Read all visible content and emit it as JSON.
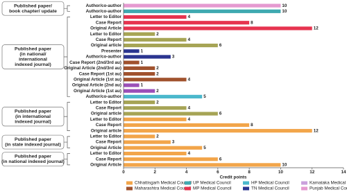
{
  "chart_data": {
    "type": "hbar-grouped",
    "xlabel": "Credit points",
    "xlim": [
      0,
      14
    ],
    "xticks": [
      0,
      2,
      4,
      6,
      8,
      10,
      12,
      14
    ],
    "groups": [
      {
        "label_lines": [
          "Published paper/",
          "book chapter/ update"
        ],
        "rows": [
          {
            "label": "Author/co-author",
            "value": 10,
            "color": "#e59ad0"
          },
          {
            "label": "Author/co-author",
            "value": 10,
            "color": "#3fa9b0"
          }
        ]
      },
      {
        "label_lines": [
          "Published paper",
          "(in national/",
          "international",
          "indexed journal)"
        ],
        "rows": [
          {
            "label": "Letter to Editor",
            "value": 4,
            "color": "#e6344f"
          },
          {
            "label": "Case Report",
            "value": 8,
            "color": "#e6344f"
          },
          {
            "label": "Original Article",
            "value": 12,
            "color": "#e6344f"
          },
          {
            "label": "Letter to Editor",
            "value": 2,
            "color": "#a6a455"
          },
          {
            "label": "Case Report",
            "value": 4,
            "color": "#a6a455"
          },
          {
            "label": "Original article",
            "value": 6,
            "color": "#a6a455"
          },
          {
            "label": "Presenter",
            "value": 1,
            "color": "#2b3590"
          },
          {
            "label": "Author/co-author",
            "value": 3,
            "color": "#2b3590"
          },
          {
            "label": "Case Report (2nd/3rd au)",
            "value": 1,
            "color": "#a0522d"
          },
          {
            "label": "Original Article (2nd/3rd au)",
            "value": 2,
            "color": "#a0522d"
          },
          {
            "label": "Case Report (1st au)",
            "value": 2,
            "color": "#a0522d"
          },
          {
            "label": "Original Article (1st au)",
            "value": 4,
            "color": "#a0522d"
          },
          {
            "label": "Original Article (2nd au)",
            "value": 1,
            "color": "#9b4fb8"
          },
          {
            "label": "Original Article (1st au)",
            "value": 2,
            "color": "#9b4fb8"
          },
          {
            "label": "Author/co-author",
            "value": 5,
            "color": "#4cb8cc"
          }
        ]
      },
      {
        "label_lines": [
          "Published paper",
          "(in international",
          "indexed journal)"
        ],
        "rows": [
          {
            "label": "Letter to Editor",
            "value": 2,
            "color": "#a6a455"
          },
          {
            "label": "Case Report",
            "value": 4,
            "color": "#a6a455"
          },
          {
            "label": "Original article",
            "value": 6,
            "color": "#a6a455"
          },
          {
            "label": "Letter to Editor",
            "value": 4,
            "color": "#f2a54a"
          },
          {
            "label": "Case Report",
            "value": 8,
            "color": "#f2a54a"
          },
          {
            "label": "Original article",
            "value": 12,
            "color": "#f2a54a"
          }
        ]
      },
      {
        "label_lines": [
          "Published paper",
          "(in state indexed journal)"
        ],
        "rows": [
          {
            "label": "Letter to Editor",
            "value": 2,
            "color": "#f2a54a"
          },
          {
            "label": "Case Report",
            "value": 3,
            "color": "#f2a54a"
          },
          {
            "label": "Original Article",
            "value": 5,
            "color": "#f2a54a"
          }
        ]
      },
      {
        "label_lines": [
          "Published paper",
          "(in national indexed journal)"
        ],
        "rows": [
          {
            "label": "Letter to Editor",
            "value": 4,
            "color": "#f2a54a"
          },
          {
            "label": "Case Report",
            "value": 6,
            "color": "#f2a54a"
          },
          {
            "label": "Original Article",
            "value": 10,
            "color": "#f2a54a"
          }
        ]
      }
    ],
    "legend": [
      {
        "name": "Chhattisgarh Medical Council",
        "color": "#f2a54a"
      },
      {
        "name": "UP Medical Council",
        "color": "#3fa9b0"
      },
      {
        "name": "HP Medical Council",
        "color": "#4cb8cc"
      },
      {
        "name": "Karnataka Medical Council",
        "color": "#c9a0dc"
      },
      {
        "name": "Maharashtra Medical Council",
        "color": "#a0522d"
      },
      {
        "name": "MP Medical Council",
        "color": "#e6344f"
      },
      {
        "name": "TN Medical Council",
        "color": "#2b3590"
      },
      {
        "name": "Punjab Medical Council",
        "color": "#e59ad0"
      }
    ]
  }
}
